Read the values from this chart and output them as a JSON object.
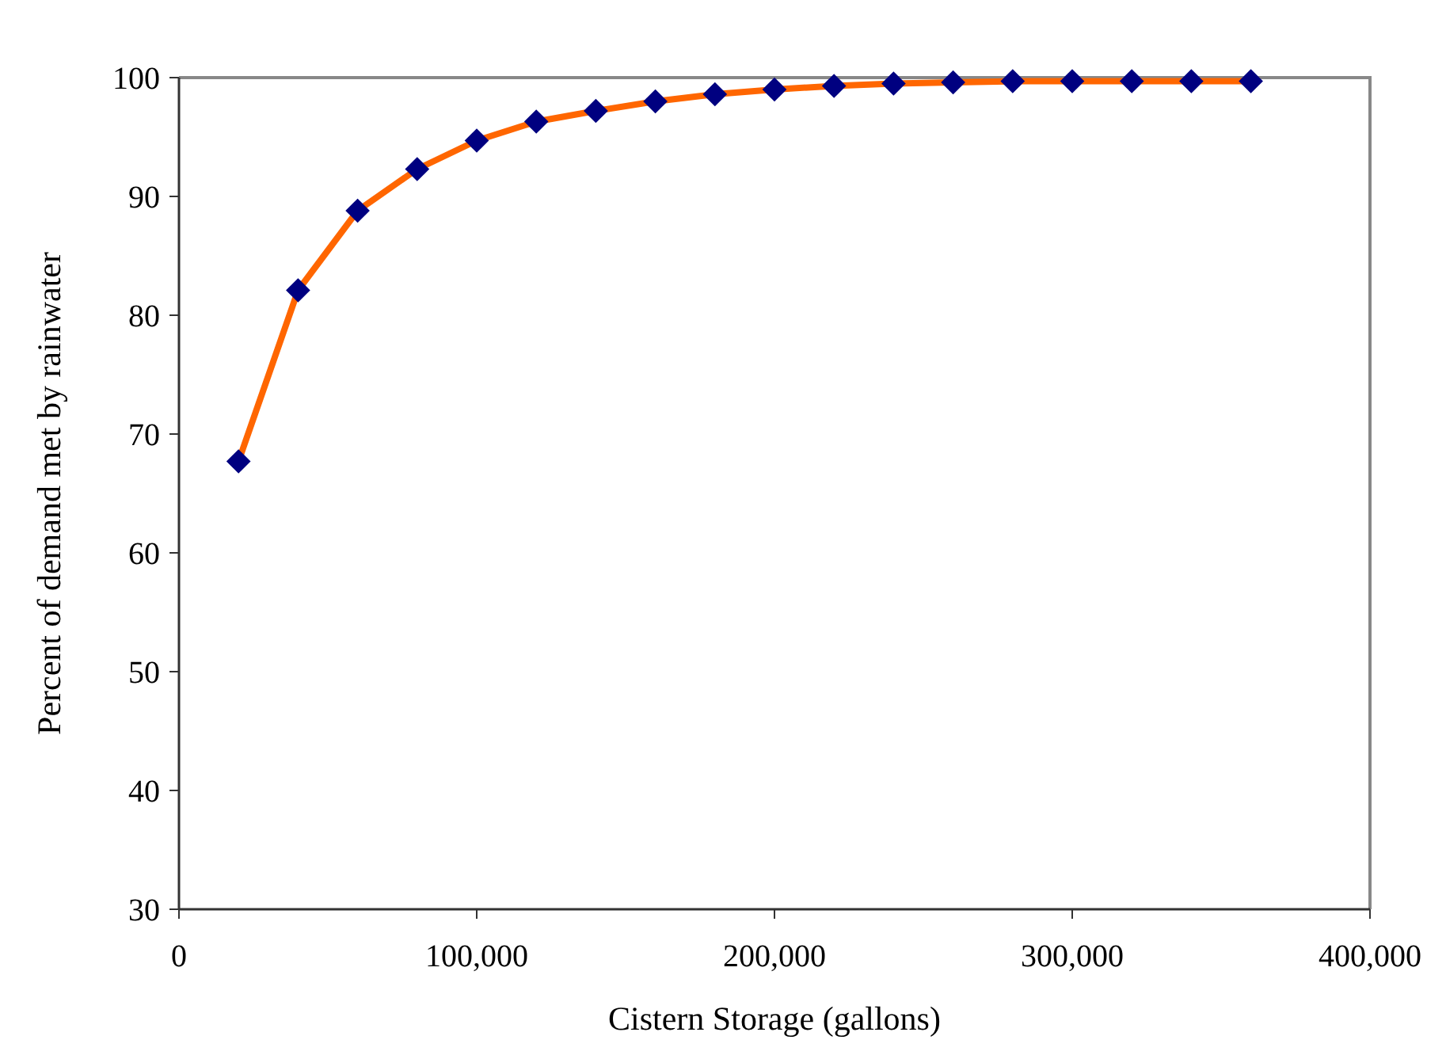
{
  "chart_data": {
    "type": "line",
    "xlabel": "Cistern Storage (gallons)",
    "ylabel": "Percent of demand met by rainwater",
    "x": [
      20000,
      40000,
      60000,
      80000,
      100000,
      120000,
      140000,
      160000,
      180000,
      200000,
      220000,
      240000,
      260000,
      280000,
      300000,
      320000,
      340000,
      360000
    ],
    "series": [
      {
        "color": "#ff6600",
        "colors": [
          "#000080",
          "#000080",
          "#000080",
          "#000080",
          "#000080",
          "#000080",
          "#000080",
          "#000080",
          "#000080",
          "#000080",
          "#000080",
          "#000080",
          "#000080",
          "#000080",
          "#000080",
          "#000080",
          "#000080",
          "#000080"
        ],
        "values": [
          67.7,
          82.1,
          88.8,
          92.3,
          94.7,
          96.3,
          97.2,
          98.0,
          98.6,
          99.0,
          99.3,
          99.5,
          99.6,
          99.7,
          99.7,
          99.7,
          99.7,
          99.7
        ]
      }
    ],
    "marker": "diamond",
    "line_style": "solid",
    "grid": false,
    "xlim": [
      0,
      400000
    ],
    "xticks": [
      0,
      {
        "value": 100000,
        "label": "100,000"
      },
      {
        "value": 200000,
        "label": "200,000"
      },
      {
        "value": 300000,
        "label": "300,000"
      },
      {
        "value": 400000,
        "label": "400,000"
      }
    ],
    "ylim": [
      30,
      100
    ],
    "yticks": [
      30,
      40,
      50,
      60,
      70,
      80,
      90,
      100
    ]
  }
}
